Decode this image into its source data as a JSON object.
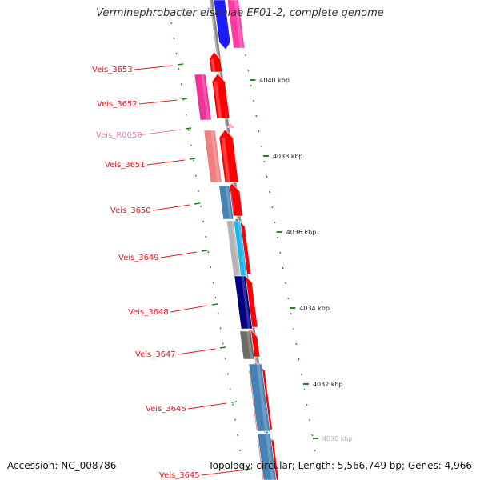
{
  "title": "Verminephrobacter eiseniae EF01-2, complete genome",
  "accession": "Accession: NC_008786",
  "summary": "Topology: circular; Length: 5,566,749 bp; Genes: 4,966",
  "colors": {
    "backbone": "#8a8a8a",
    "tick": "#1a8a1a",
    "label_red": "#e8171d",
    "label_pink": "#f47ab0",
    "forward_cds": "#ff0000",
    "blue": "#1c1cff",
    "magenta": "#ff3aa5",
    "hotpink": "#ee3399",
    "salmon": "#f08080",
    "steelblue": "#4682b4",
    "silver": "#b3b3b3",
    "cyan": "#18b6ec",
    "navy": "#000080",
    "dimgray": "#6b6b6b",
    "lightpink": "#ffb6c1"
  },
  "scale_ticks": [
    {
      "label": "4040 kbp"
    },
    {
      "label": "4038 kbp"
    },
    {
      "label": "4036 kbp"
    },
    {
      "label": "4034 kbp"
    },
    {
      "label": "4032 kbp"
    },
    {
      "label": "4030 kbp"
    }
  ],
  "genes": [
    {
      "label": "Veis_3653",
      "color": "label_red"
    },
    {
      "label": "Veis_3652",
      "color": "label_red"
    },
    {
      "label": "Veis_R0050",
      "color": "label_pink"
    },
    {
      "label": "Veis_3651",
      "color": "label_red"
    },
    {
      "label": "Veis_3650",
      "color": "label_red"
    },
    {
      "label": "Veis_3649",
      "color": "label_red"
    },
    {
      "label": "Veis_3648",
      "color": "label_red"
    },
    {
      "label": "Veis_3647",
      "color": "label_red"
    },
    {
      "label": "Veis_3646",
      "color": "label_red"
    },
    {
      "label": "Veis_3645",
      "color": "label_red"
    }
  ]
}
